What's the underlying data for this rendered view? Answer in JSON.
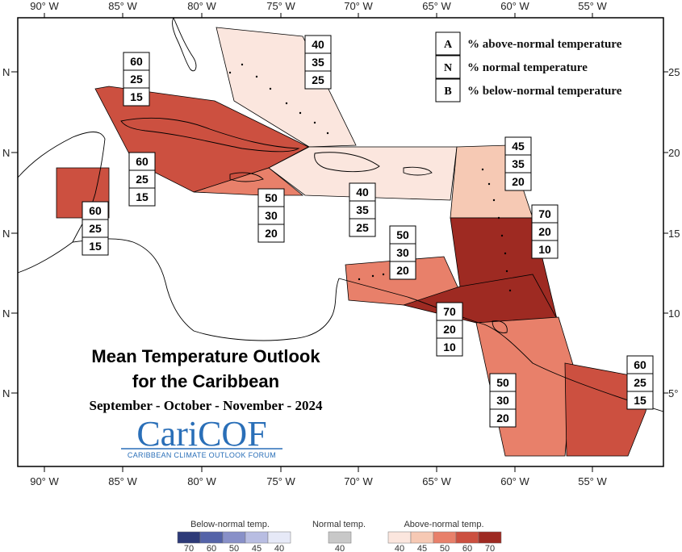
{
  "colors": {
    "above": {
      "40": "#fbe6de",
      "45": "#f6c9b4",
      "50": "#e8806a",
      "60": "#cc5040",
      "70": "#9e2a22"
    },
    "below": [
      "#2d3a78",
      "#5463a8",
      "#8890c8",
      "#b8bde2",
      "#e6e9f7"
    ],
    "normal": "#c8c8c8"
  },
  "axes": {
    "top_lon": [
      "90° W",
      "85° W",
      "80° W",
      "75° W",
      "70° W",
      "65° W",
      "60° W",
      "55° W"
    ],
    "bottom_lon": [
      "90° W",
      "85° W",
      "80° W",
      "75° W",
      "70° W",
      "65° W",
      "60° W",
      "55° W"
    ],
    "left_lat": [
      "N",
      "N",
      "N",
      "N",
      "N"
    ],
    "right_lat": [
      "25",
      "20",
      "15",
      "10",
      "5°"
    ]
  },
  "key": [
    {
      "letter": "A",
      "text": "% above-normal temperature"
    },
    {
      "letter": "N",
      "text": "% normal temperature"
    },
    {
      "letter": "B",
      "text": "% below-normal temperature"
    }
  ],
  "regions": [
    {
      "id": "bahamas",
      "level": "40"
    },
    {
      "id": "cuba",
      "level": "60"
    },
    {
      "id": "jamaica",
      "level": "50"
    },
    {
      "id": "hispaniola-pr",
      "level": "40"
    },
    {
      "id": "belize",
      "level": "60"
    },
    {
      "id": "leeward",
      "level": "45"
    },
    {
      "id": "windward",
      "level": "70"
    },
    {
      "id": "abc",
      "level": "50"
    },
    {
      "id": "trinidad",
      "level": "70"
    },
    {
      "id": "guyana",
      "level": "50"
    },
    {
      "id": "suriname",
      "level": "60"
    }
  ],
  "prob_boxes": [
    {
      "id": "bahamas",
      "values": [
        "40",
        "35",
        "25"
      ]
    },
    {
      "id": "cuba",
      "values": [
        "60",
        "25",
        "15"
      ]
    },
    {
      "id": "cayman",
      "values": [
        "60",
        "25",
        "15"
      ]
    },
    {
      "id": "belize",
      "values": [
        "60",
        "25",
        "15"
      ]
    },
    {
      "id": "jamaica",
      "values": [
        "50",
        "30",
        "20"
      ]
    },
    {
      "id": "hispaniola",
      "values": [
        "40",
        "35",
        "25"
      ]
    },
    {
      "id": "leeward",
      "values": [
        "45",
        "35",
        "20"
      ]
    },
    {
      "id": "windward",
      "values": [
        "70",
        "20",
        "10"
      ]
    },
    {
      "id": "abc",
      "values": [
        "50",
        "30",
        "20"
      ]
    },
    {
      "id": "trinidad",
      "values": [
        "70",
        "20",
        "10"
      ]
    },
    {
      "id": "guyana",
      "values": [
        "50",
        "30",
        "20"
      ]
    },
    {
      "id": "suriname",
      "values": [
        "60",
        "25",
        "15"
      ]
    }
  ],
  "title": {
    "line1": "Mean Temperature Outlook",
    "line2": "for the Caribbean",
    "line3": "September - October - November - 2024"
  },
  "logo": {
    "name": "CariCOF",
    "tagline": "CARIBBEAN CLIMATE OUTLOOK FORUM"
  },
  "colorbar": {
    "below_title": "Below-normal temp.",
    "normal_title": "Normal temp.",
    "above_title": "Above-normal temp.",
    "below_ticks": [
      "70",
      "60",
      "50",
      "45",
      "40"
    ],
    "normal_ticks": [
      "40"
    ],
    "above_ticks": [
      "40",
      "45",
      "50",
      "60",
      "70"
    ]
  }
}
